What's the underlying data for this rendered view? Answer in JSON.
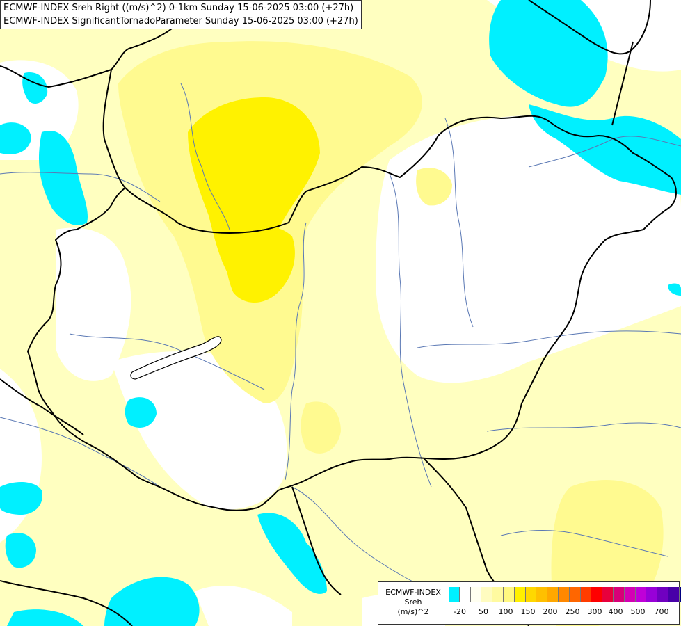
{
  "title": {
    "line1": "ECMWF-INDEX Sreh Right ((m/s)^2) 0-1km Sunday 15-06-2025 03:00 (+27h)",
    "line2": "ECMWF-INDEX SignificantTornadoParameter Sunday 15-06-2025 03:00 (+27h)"
  },
  "legend": {
    "source": "ECMWF-INDEX",
    "variable": "Sreh",
    "unit": "(m/s)^2",
    "colors": [
      "#00f0ff",
      "#ffffff",
      "#fffff0",
      "#fffcc0",
      "#fffaa0",
      "#fff880",
      "#fff000",
      "#ffd800",
      "#ffc000",
      "#ffa800",
      "#ff8800",
      "#ff6600",
      "#ff3c00",
      "#ff0000",
      "#e8003c",
      "#d80078",
      "#d400b4",
      "#c000d8",
      "#9800d8",
      "#7000c0",
      "#4800a8",
      "#000080"
    ],
    "ticks": [
      "-20",
      "50",
      "100",
      "150",
      "200",
      "250",
      "300",
      "400",
      "500",
      "700"
    ]
  },
  "map": {
    "colors": {
      "cyan": "#00f0ff",
      "pale_yellow": "#ffffc0",
      "light_yellow": "#fffa90",
      "yellow": "#fff200",
      "border": "#000000",
      "river": "#5a78b4"
    }
  }
}
